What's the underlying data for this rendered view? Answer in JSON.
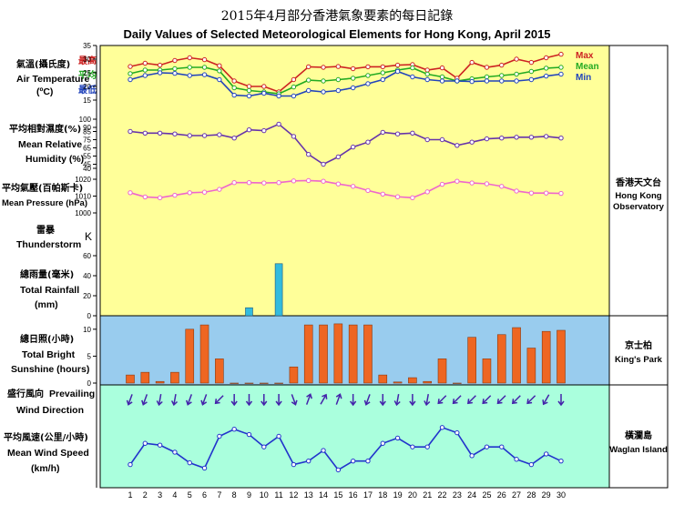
{
  "title": {
    "zh": "2015年4月部分香港氣象要素的每日記錄",
    "en": "Daily Values of Selected Meteorological Elements for Hong Kong, April 2015"
  },
  "colors": {
    "yellow_bg": "#ffff99",
    "blue_bg": "#99ccee",
    "green_bg": "#aaffdd",
    "max": "#cc2222",
    "mean": "#22aa22",
    "min": "#2244bb",
    "humidity": "#6633aa",
    "pressure": "#ee66cc",
    "rain": "#33bbdd",
    "sun": "#ee6622",
    "wind": "#4422aa",
    "wind_speed": "#2233cc"
  },
  "stations": {
    "hko_zh": "香港天文台",
    "hko_en1": "Hong Kong",
    "hko_en2": "Observatory",
    "kp_zh": "京士柏",
    "kp_en": "King's Park",
    "wi_zh": "橫瀾島",
    "wi_en": "Waglan Island"
  },
  "labels": {
    "temp_zh": "氣溫(攝氏度)",
    "temp_en": "Air Temperature",
    "temp_unit": "(ºC)",
    "temp_max_zh": "最高",
    "temp_mean_zh": "平均",
    "temp_min_zh": "最低",
    "temp_max_en": "Max",
    "temp_mean_en": "Mean",
    "temp_min_en": "Min",
    "rh_zh": "平均相對濕度(%)",
    "rh_en1": "Mean Relative",
    "rh_en2": "Humidity  (%)",
    "p_zh": "平均氣壓(百帕斯卡)",
    "p_en": "Mean Pressure (hPa)",
    "ts_zh": "雷暴",
    "ts_en": "Thunderstorm",
    "ts_symbol": "K",
    "rain_zh": "總雨量(毫米)",
    "rain_en1": "Total Rainfall",
    "rain_en2": "(mm)",
    "sun_zh": "總日照(小時)",
    "sun_en1": "Total Bright",
    "sun_en2": "Sunshine  (hours)",
    "wd_zh": "盛行風向",
    "wd_en1": "Prevailing",
    "wd_en2": "Wind Direction",
    "ws_zh": "平均風速(公里/小時)",
    "ws_en1": "Mean Wind Speed",
    "ws_en2": "(km/h)"
  },
  "chart_data": {
    "type": "line",
    "x": [
      1,
      2,
      3,
      4,
      5,
      6,
      7,
      8,
      9,
      10,
      11,
      12,
      13,
      14,
      15,
      16,
      17,
      18,
      19,
      20,
      21,
      22,
      23,
      24,
      25,
      26,
      27,
      28,
      29,
      30
    ],
    "temperature": {
      "yticks": [
        "15",
        "20",
        "25",
        "30",
        "35"
      ],
      "ylim": [
        15,
        35
      ],
      "series": [
        {
          "name": "Max",
          "values": [
            27.3,
            28.5,
            27.8,
            29.5,
            30.5,
            29.8,
            27.6,
            22.0,
            20.0,
            20.0,
            18.0,
            22.5,
            27.2,
            27.0,
            27.3,
            26.5,
            27.2,
            27.2,
            27.8,
            28.0,
            26.0,
            26.8,
            23.0,
            28.8,
            27.0,
            27.8,
            30.0,
            28.8,
            30.5,
            31.8
          ]
        },
        {
          "name": "Mean",
          "values": [
            24.7,
            26.0,
            26.0,
            26.5,
            27.0,
            27.0,
            25.7,
            19.5,
            18.5,
            18.0,
            17.3,
            19.8,
            22.3,
            22.0,
            22.5,
            23.0,
            24.0,
            25.0,
            26.0,
            26.8,
            24.5,
            23.5,
            22.0,
            22.8,
            23.5,
            24.0,
            24.5,
            25.5,
            26.7,
            27.0
          ]
        },
        {
          "name": "Min",
          "values": [
            22.5,
            24.0,
            25.0,
            24.8,
            24.0,
            24.3,
            22.5,
            16.8,
            16.5,
            17.5,
            16.5,
            16.5,
            18.5,
            18.0,
            18.5,
            19.5,
            21.0,
            22.5,
            25.5,
            23.5,
            22.5,
            22.0,
            22.0,
            21.8,
            22.0,
            22.0,
            22.0,
            22.5,
            23.8,
            24.5
          ]
        }
      ]
    },
    "humidity": {
      "yticks": [
        "40",
        "45",
        "55",
        "65",
        "75",
        "85",
        "90",
        "100"
      ],
      "values": [
        85,
        83,
        83,
        82,
        80,
        80,
        81,
        77,
        87,
        86,
        94,
        79,
        57,
        45,
        54,
        66,
        72,
        84,
        82,
        83,
        75,
        75,
        68,
        72,
        76,
        77,
        78,
        78,
        79,
        77
      ]
    },
    "pressure": {
      "yticks": [
        "1000",
        "1010",
        "1020"
      ],
      "ylim": [
        1000,
        1020
      ],
      "values": [
        1012,
        1009.5,
        1009,
        1010.5,
        1012,
        1012.3,
        1014,
        1018,
        1018,
        1017.8,
        1018,
        1019,
        1019.2,
        1018.8,
        1017.2,
        1015.8,
        1013.3,
        1011.2,
        1009.6,
        1009,
        1012.5,
        1017,
        1018.8,
        1017.8,
        1017.3,
        1015.8,
        1013,
        1011.8,
        1011.8,
        1011.6
      ]
    },
    "thunderstorm_days": [],
    "rainfall": {
      "yticks": [
        "0",
        "20",
        "40",
        "60"
      ],
      "ylim": [
        0,
        70
      ],
      "values": [
        0,
        0,
        0,
        0,
        0,
        0,
        0,
        0,
        8,
        0,
        52,
        0,
        0,
        0,
        0,
        0,
        0,
        0,
        0,
        0,
        0,
        0,
        0,
        0,
        0,
        0,
        0,
        0,
        0,
        0
      ]
    },
    "sunshine": {
      "yticks": [
        "0",
        "5",
        "10"
      ],
      "ylim": [
        0,
        12
      ],
      "values": [
        1.5,
        2,
        0.3,
        2,
        10,
        10.8,
        4.5,
        0,
        0,
        0,
        0,
        3,
        10.8,
        10.8,
        11,
        10.8,
        10.8,
        1.5,
        0.2,
        1,
        0.3,
        4.5,
        0,
        8.5,
        4.5,
        9,
        10.3,
        6.5,
        9.6,
        9.8
      ]
    },
    "wind_direction_deg": [
      200,
      200,
      190,
      190,
      200,
      200,
      225,
      180,
      180,
      180,
      180,
      160,
      20,
      30,
      20,
      180,
      200,
      180,
      190,
      180,
      190,
      225,
      225,
      225,
      225,
      225,
      225,
      225,
      210,
      180
    ],
    "wind_speed": {
      "values": [
        10,
        22,
        21,
        17,
        11,
        8,
        26,
        30,
        27,
        20,
        26,
        10,
        12,
        18,
        7,
        12,
        12,
        22,
        25,
        20,
        20,
        31,
        28,
        15,
        20,
        20,
        13,
        10,
        16,
        12
      ]
    }
  }
}
